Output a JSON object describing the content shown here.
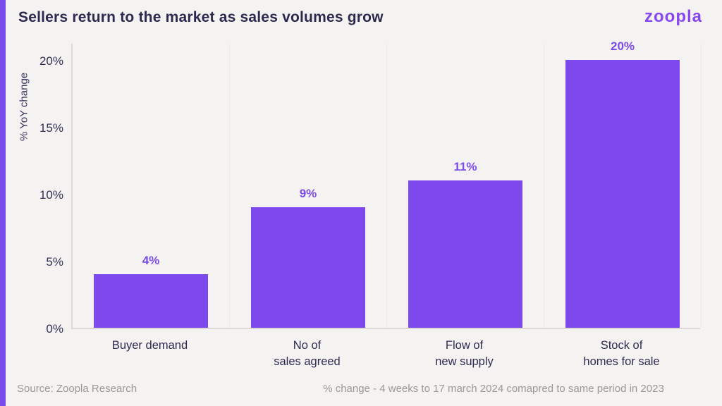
{
  "header": {
    "title": "Sellers return to the market as sales volumes grow",
    "logo_text": "zoopla"
  },
  "chart_data": {
    "type": "bar",
    "categories": [
      "Buyer demand",
      "No of\nsales agreed",
      "Flow of\nnew supply",
      "Stock of\nhomes for sale"
    ],
    "values": [
      4,
      9,
      11,
      20
    ],
    "value_labels": [
      "4%",
      "9%",
      "11%",
      "20%"
    ],
    "title": "Sellers return to the market as sales volumes grow",
    "xlabel": "",
    "ylabel": "% YoY change",
    "ylim": [
      0,
      21.3
    ],
    "yticks": [
      {
        "value": 0,
        "label": "0%"
      },
      {
        "value": 5,
        "label": "5%"
      },
      {
        "value": 10,
        "label": "10%"
      },
      {
        "value": 15,
        "label": "15%"
      },
      {
        "value": 20,
        "label": "20%"
      }
    ],
    "grid": "vertical category separators, no horizontal gridlines",
    "legend": "none",
    "bar_color": "#7D49ED",
    "value_label_color": "#7C4BE8"
  },
  "footer": {
    "source": "Source: Zoopla Research",
    "note": "% change - 4 weeks to 17 march 2024 comapred to same period in 2023"
  },
  "colors": {
    "background": "#F5F3F1",
    "accent_strip": "#7C49EC",
    "title_text": "#2E2950",
    "axis_line": "#DCD8D4",
    "gridline": "#ECE9E6",
    "footer_text": "#9B9896",
    "logo": "#8748F2"
  }
}
